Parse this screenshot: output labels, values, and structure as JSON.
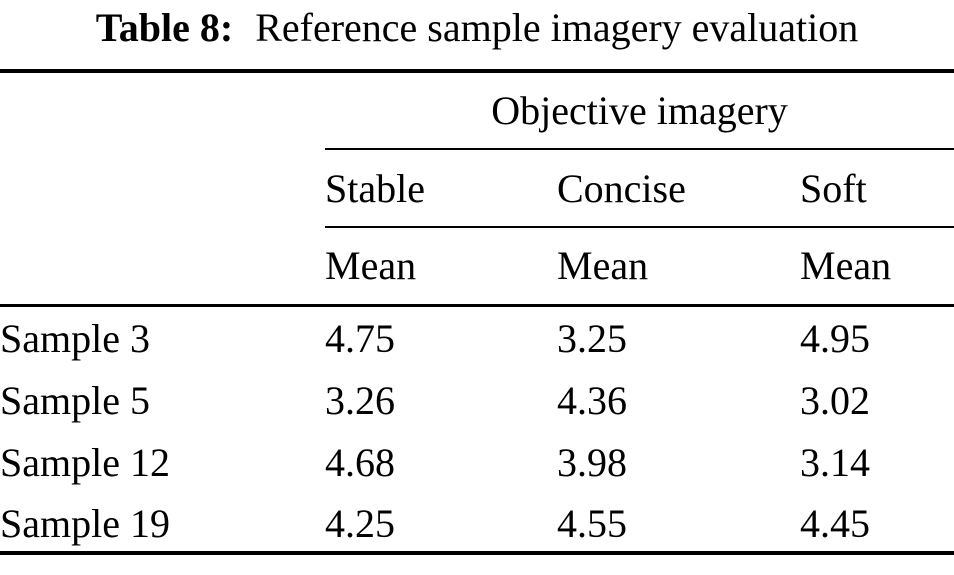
{
  "caption": {
    "label": "Table 8:",
    "text": "Reference sample imagery evaluation"
  },
  "table": {
    "group_header": "Objective imagery",
    "columns": [
      "Stable",
      "Concise",
      "Soft"
    ],
    "subcolumns": [
      "Mean",
      "Mean",
      "Mean"
    ],
    "rows": [
      {
        "label": "Sample 3",
        "values": [
          "4.75",
          "3.25",
          "4.95"
        ]
      },
      {
        "label": "Sample 5",
        "values": [
          "3.26",
          "4.36",
          "3.02"
        ]
      },
      {
        "label": "Sample 12",
        "values": [
          "4.68",
          "3.98",
          "3.14"
        ]
      },
      {
        "label": "Sample 19",
        "values": [
          "4.25",
          "4.55",
          "4.45"
        ]
      }
    ]
  },
  "colors": {
    "text": "#000000",
    "background": "#ffffff",
    "rule": "#000000"
  },
  "chart_data": {
    "type": "table",
    "title": "Table 8: Reference sample imagery evaluation",
    "group_header": "Objective imagery",
    "columns": [
      "Stable Mean",
      "Concise Mean",
      "Soft Mean"
    ],
    "categories": [
      "Sample 3",
      "Sample 5",
      "Sample 12",
      "Sample 19"
    ],
    "series": [
      {
        "name": "Stable Mean",
        "values": [
          4.75,
          3.26,
          4.68,
          4.25
        ]
      },
      {
        "name": "Concise Mean",
        "values": [
          3.25,
          4.36,
          3.98,
          4.55
        ]
      },
      {
        "name": "Soft Mean",
        "values": [
          4.95,
          3.02,
          3.14,
          4.45
        ]
      }
    ]
  }
}
